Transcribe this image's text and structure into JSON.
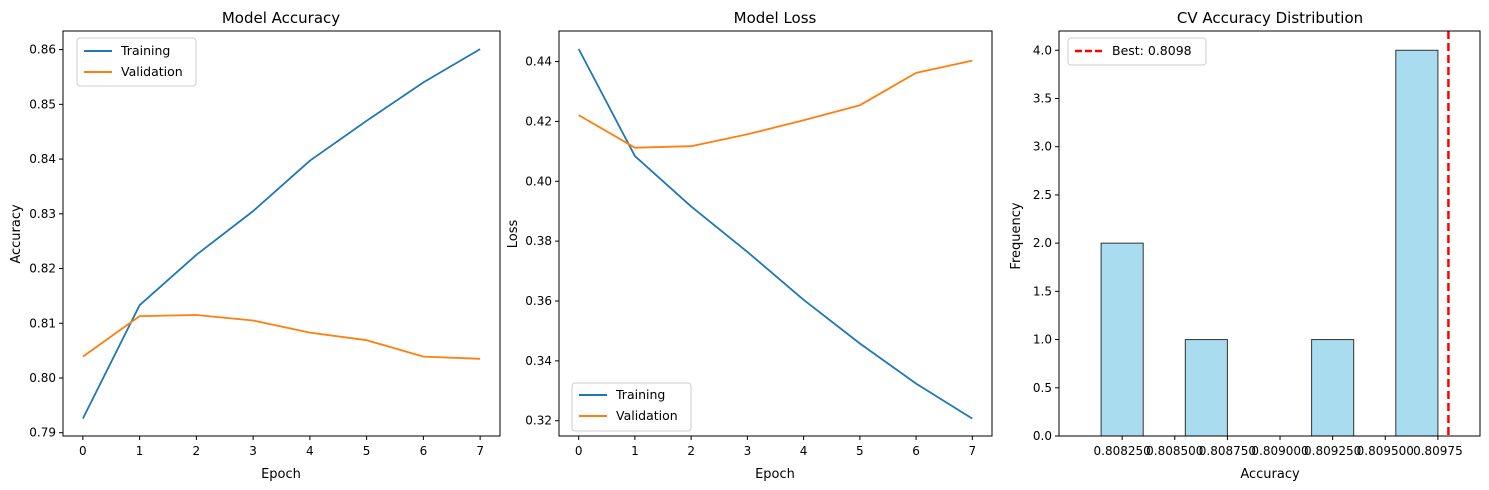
{
  "chart_data": [
    {
      "type": "line",
      "title": "Model Accuracy",
      "xlabel": "Epoch",
      "ylabel": "Accuracy",
      "x": [
        0,
        1,
        2,
        3,
        4,
        5,
        6,
        7
      ],
      "xlim": [
        -0.35,
        7.35
      ],
      "ylim": [
        0.7894,
        0.8634
      ],
      "xticks": [
        0,
        1,
        2,
        3,
        4,
        5,
        6,
        7
      ],
      "yticks": [
        0.79,
        0.8,
        0.81,
        0.82,
        0.83,
        0.84,
        0.85,
        0.86
      ],
      "ytick_labels": [
        "0.79",
        "0.80",
        "0.81",
        "0.82",
        "0.83",
        "0.84",
        "0.85",
        "0.86"
      ],
      "legend_position": "top-left",
      "series": [
        {
          "name": "Training",
          "color": "#1f77b4",
          "values": [
            0.7926,
            0.8133,
            0.8225,
            0.8305,
            0.8397,
            0.847,
            0.854,
            0.8601
          ]
        },
        {
          "name": "Validation",
          "color": "#ff7f0e",
          "values": [
            0.8039,
            0.8113,
            0.8115,
            0.8105,
            0.8083,
            0.8069,
            0.8039,
            0.8035
          ]
        }
      ]
    },
    {
      "type": "line",
      "title": "Model Loss",
      "xlabel": "Epoch",
      "ylabel": "Loss",
      "x": [
        0,
        1,
        2,
        3,
        4,
        5,
        6,
        7
      ],
      "xlim": [
        -0.35,
        7.35
      ],
      "ylim": [
        0.3149,
        0.4502
      ],
      "xticks": [
        0,
        1,
        2,
        3,
        4,
        5,
        6,
        7
      ],
      "yticks": [
        0.32,
        0.34,
        0.36,
        0.38,
        0.4,
        0.42,
        0.44
      ],
      "ytick_labels": [
        "0.32",
        "0.34",
        "0.36",
        "0.38",
        "0.40",
        "0.42",
        "0.44"
      ],
      "legend_position": "bottom-left",
      "series": [
        {
          "name": "Training",
          "color": "#1f77b4",
          "values": [
            0.4442,
            0.4084,
            0.3916,
            0.3764,
            0.3604,
            0.3458,
            0.3324,
            0.3207
          ]
        },
        {
          "name": "Validation",
          "color": "#ff7f0e",
          "values": [
            0.4221,
            0.4112,
            0.4117,
            0.4157,
            0.4204,
            0.4254,
            0.4362,
            0.4403
          ]
        }
      ]
    },
    {
      "type": "bar",
      "title": "CV Accuracy Distribution",
      "xlabel": "Accuracy",
      "ylabel": "Frequency",
      "bin_edges": [
        0.80815,
        0.80835,
        0.80855,
        0.80875,
        0.80895,
        0.80915,
        0.80935,
        0.80955,
        0.80975
      ],
      "values": [
        2,
        0,
        1,
        0,
        0,
        1,
        0,
        4
      ],
      "bar_color": "#a8dcee",
      "bar_edge_color": "#333333",
      "xlim": [
        0.80795,
        0.80995
      ],
      "ylim": [
        0,
        4.2
      ],
      "xticks": [
        0.80825,
        0.8085,
        0.80875,
        0.809,
        0.80925,
        0.8095,
        0.80975
      ],
      "xtick_labels": [
        "0.808250",
        "0.808500",
        "0.808750",
        "0.809000",
        "0.809250",
        "0.809500",
        "0.80975"
      ],
      "yticks": [
        0.0,
        0.5,
        1.0,
        1.5,
        2.0,
        2.5,
        3.0,
        3.5,
        4.0
      ],
      "ytick_labels": [
        "0.0",
        "0.5",
        "1.0",
        "1.5",
        "2.0",
        "2.5",
        "3.0",
        "3.5",
        "4.0"
      ],
      "best_line": {
        "value": 0.8098,
        "label": "Best: 0.8098",
        "color": "#ff0000"
      },
      "legend_position": "top-left"
    }
  ]
}
